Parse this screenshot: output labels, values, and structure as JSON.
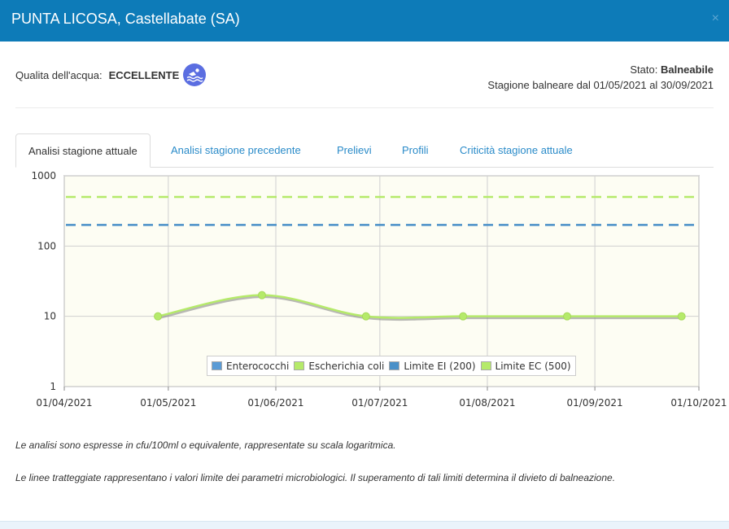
{
  "header": {
    "title": "PUNTA LICOSA, Castellabate (SA)",
    "close": "×"
  },
  "quality": {
    "label": "Qualita dell'acqua:",
    "value": "ECCELLENTE",
    "icon": "swimmer-icon",
    "icon_color": "#5b6ee1"
  },
  "status": {
    "label": "Stato:",
    "value": "Balneabile",
    "season": "Stagione balneare dal 01/05/2021 al 30/09/2021"
  },
  "tabs": [
    {
      "label": "Analisi stagione attuale",
      "active": true
    },
    {
      "label": "Analisi stagione precedente",
      "active": false
    },
    {
      "label": "Prelievi",
      "active": false
    },
    {
      "label": "Profili",
      "active": false
    },
    {
      "label": "Criticità stagione attuale",
      "active": false
    }
  ],
  "chart_data": {
    "type": "line",
    "y_scale": "log",
    "ylim": [
      1,
      1000
    ],
    "y_ticks": [
      "1",
      "10",
      "100",
      "1000"
    ],
    "xlim": [
      "2021-04-01",
      "2021-10-01"
    ],
    "x_ticks": [
      "01/04/2021",
      "01/05/2021",
      "01/06/2021",
      "01/07/2021",
      "01/08/2021",
      "01/09/2021",
      "01/10/2021"
    ],
    "grid": true,
    "legend_placement": "bottom-center",
    "series": [
      {
        "name": "Enterococchi",
        "color": "#5b9bd5",
        "style": "line",
        "points": []
      },
      {
        "name": "Escherichia coli",
        "color": "#b5ea6a",
        "style": "line",
        "points": [
          {
            "x": "2021-04-28",
            "y": 10
          },
          {
            "x": "2021-05-28",
            "y": 20
          },
          {
            "x": "2021-06-27",
            "y": 10
          },
          {
            "x": "2021-07-25",
            "y": 10
          },
          {
            "x": "2021-08-24",
            "y": 10
          },
          {
            "x": "2021-09-26",
            "y": 10
          }
        ]
      },
      {
        "name": "Limite EI (200)",
        "color": "#4a90c8",
        "style": "dashed",
        "value": 200
      },
      {
        "name": "Limite EC (500)",
        "color": "#b5ea6a",
        "style": "dashed",
        "value": 500
      }
    ]
  },
  "notes": {
    "line1": "Le analisi sono espresse in cfu/100ml o equivalente, rappresentate su scala logaritmica.",
    "line2": "Le linee tratteggiate rappresentano i valori limite dei parametri microbiologici. Il superamento di tali limiti determina il divieto di balneazione."
  }
}
